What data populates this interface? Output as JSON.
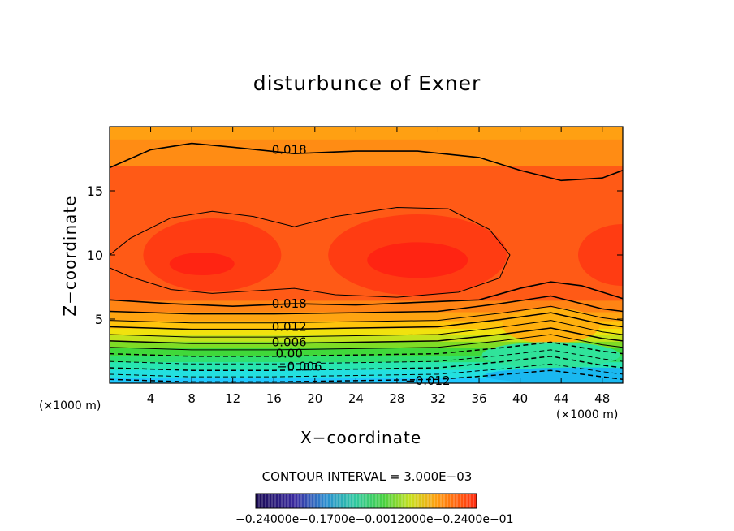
{
  "chart_data": {
    "type": "heatmap",
    "title": "disturbunce of Exner",
    "xlabel": "X−coordinate",
    "ylabel": "Z−coordinate",
    "x_unit_left": "(×1000 m)",
    "x_unit_right": "(×1000 m)",
    "xlim": [
      0,
      50
    ],
    "ylim": [
      0,
      20
    ],
    "x_ticks": [
      4,
      8,
      12,
      16,
      20,
      24,
      28,
      32,
      36,
      40,
      44,
      48
    ],
    "y_ticks": [
      5,
      10,
      15
    ],
    "contour_interval_text": "CONTOUR INTERVAL = 3.000E−03",
    "contour_interval": 0.003,
    "contour_labels": [
      {
        "text": "0.018",
        "x": 17.5,
        "z": 18.2
      },
      {
        "text": "0.018",
        "x": 17.5,
        "z": 6.2
      },
      {
        "text": "0.012",
        "x": 17.5,
        "z": 4.4
      },
      {
        "text": "0.006",
        "x": 17.5,
        "z": 3.2
      },
      {
        "text": "0.00",
        "x": 17.5,
        "z": 2.3
      },
      {
        "text": "−0.006",
        "x": 18.5,
        "z": 1.3
      },
      {
        "text": "−0.012",
        "x": 31.0,
        "z": 0.2
      }
    ],
    "colorbar_labels_text": "−0.24000e−0.1700e−0.0012000e−0.2400e−01",
    "grid": false
  }
}
